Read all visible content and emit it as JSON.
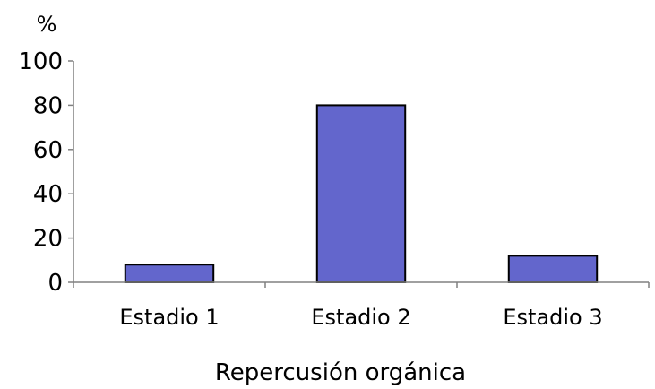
{
  "chart_data": {
    "type": "bar",
    "categories": [
      "Estadio 1",
      "Estadio 2",
      "Estadio 3"
    ],
    "values": [
      8,
      80,
      12
    ],
    "xlabel": "Repercusión orgánica",
    "ylabel": "%",
    "ylim": [
      0,
      100
    ],
    "yticks": [
      0,
      20,
      40,
      60,
      80,
      100
    ],
    "bar_color": "#6366cc",
    "bar_edge_color": "#000000",
    "grid": false,
    "legend": "none"
  }
}
